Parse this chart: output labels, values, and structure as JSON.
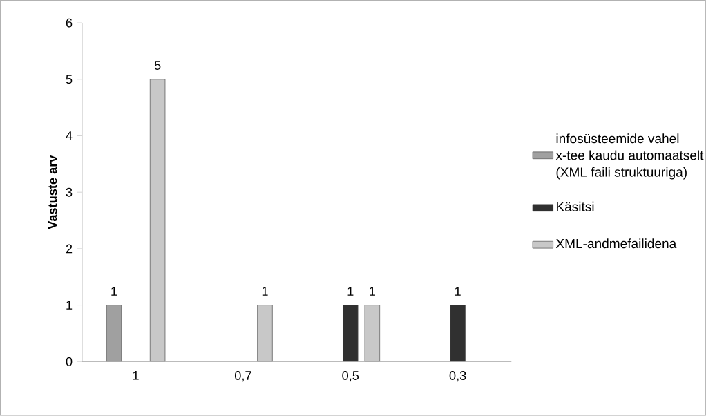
{
  "chart_data": {
    "type": "bar",
    "ylabel": "Vastuste arv",
    "categories": [
      "1",
      "0,7",
      "0,5",
      "0,3"
    ],
    "series": [
      {
        "name": "infosüsteemide vahel x-tee kaudu automaatselt (XML faili struktuuriga)",
        "color": "#a0a0a0",
        "values": [
          1,
          null,
          null,
          null
        ]
      },
      {
        "name": "Käsitsi",
        "color": "#303030",
        "values": [
          null,
          null,
          1,
          1
        ]
      },
      {
        "name": "XML-andmefailidena",
        "color": "#c8c8c8",
        "values": [
          5,
          1,
          1,
          null
        ]
      }
    ],
    "ylim": [
      0,
      6
    ],
    "yticks": [
      0,
      1,
      2,
      3,
      4,
      5,
      6
    ],
    "data_labels": true,
    "legend": "right",
    "grid": false
  }
}
